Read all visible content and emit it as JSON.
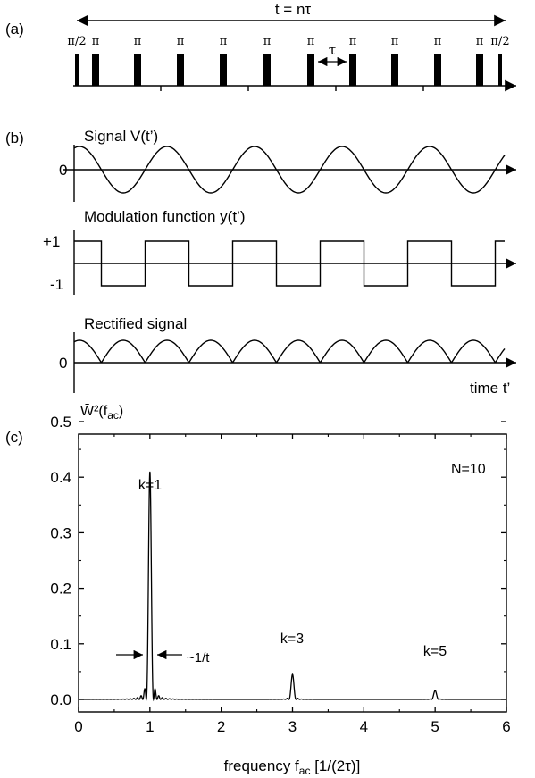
{
  "panel_a": {
    "label": "(a)",
    "span_label": "t = nτ",
    "tau_label": "τ",
    "pulse_labels": [
      "π/2",
      "π",
      "π",
      "π",
      "π",
      "π",
      "π",
      "π",
      "π",
      "π",
      "π",
      "π/2"
    ]
  },
  "panel_b": {
    "label": "(b)",
    "signal_title": "Signal V(t’)",
    "signal_zero": "0",
    "modulation_title": "Modulation function y(t’)",
    "mod_plus": "+1",
    "mod_minus": "-1",
    "rectified_title": "Rectified signal",
    "rectified_zero": "0",
    "time_label": "time t’"
  },
  "panel_c": {
    "label": "(c)",
    "ylabel": "W̄²(f",
    "ylabel_sub": "ac",
    "ylabel_end": ")",
    "xlabel": "frequency f",
    "xlabel_sub": "ac",
    "xlabel_end": " [1/(2τ)]",
    "n_label": "N=10",
    "width_label": "~1/t",
    "peak_labels": [
      "k=1",
      "k=3",
      "k=5"
    ]
  },
  "chart_data": {
    "type": "line",
    "x_ticks": [
      "0",
      "1",
      "2",
      "3",
      "4",
      "5",
      "6"
    ],
    "y_ticks": [
      "0.0",
      "0.1",
      "0.2",
      "0.3",
      "0.4",
      "0.5"
    ],
    "xlim": [
      0,
      6
    ],
    "ylim": [
      0,
      0.5
    ],
    "peaks": [
      {
        "x": 1,
        "y": 0.41
      },
      {
        "x": 3,
        "y": 0.045
      },
      {
        "x": 5,
        "y": 0.016
      }
    ]
  }
}
